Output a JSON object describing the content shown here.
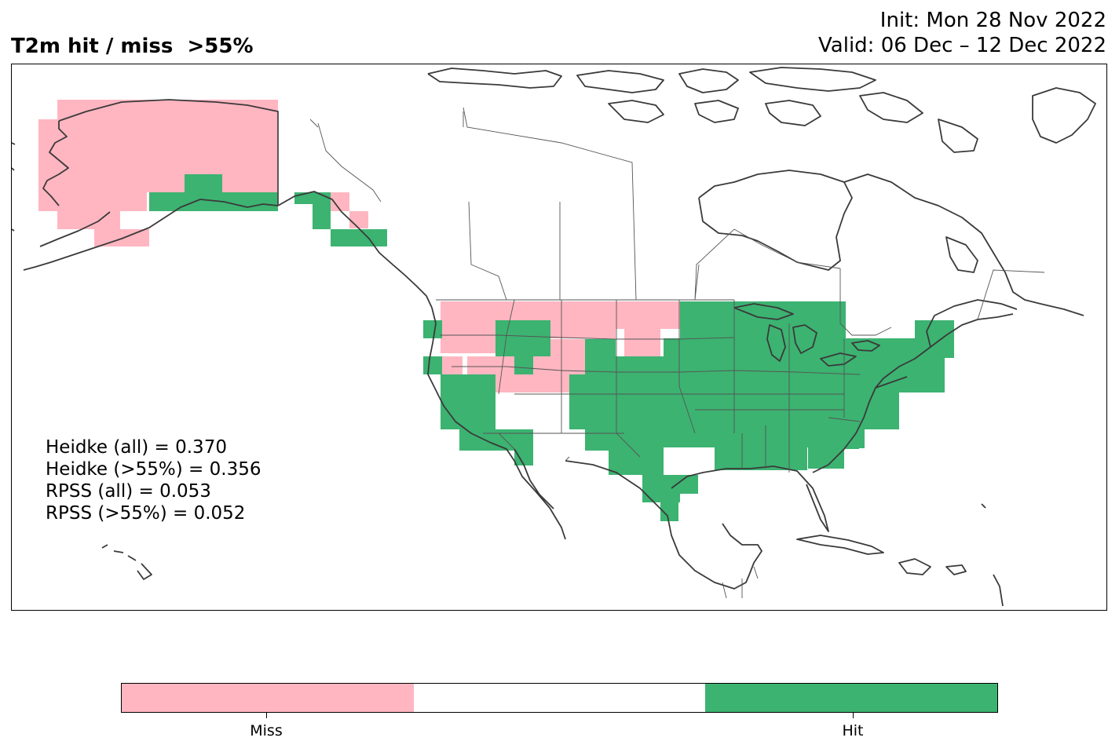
{
  "header": {
    "title": "T2m hit / miss  >55%",
    "init": "Init: Mon 28 Nov 2022",
    "valid": "Valid: 06 Dec – 12 Dec 2022"
  },
  "stats": [
    "Heidke (all) = 0.370",
    "Heidke (>55%) = 0.356",
    "RPSS (all) = 0.053",
    "RPSS (>55%) = 0.052"
  ],
  "colors": {
    "miss": "#ffb6c1",
    "neutral": "#ffffff",
    "hit": "#3cb371",
    "coast": "#3a3a3a"
  },
  "legend": {
    "categories": [
      "Miss",
      "",
      "Hit"
    ],
    "labels": {
      "miss": "Miss",
      "hit": "Hit"
    }
  }
}
